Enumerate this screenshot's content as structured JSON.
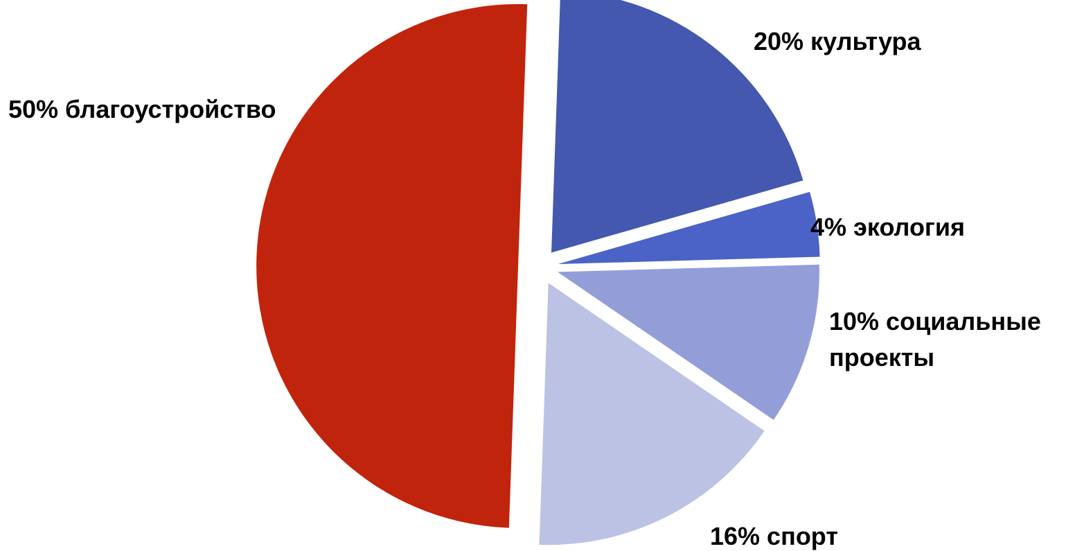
{
  "chart_data": {
    "type": "pie",
    "title": "",
    "exploded": true,
    "slices": [
      {
        "name": "культура",
        "value": 20,
        "label_lines": [
          "20% культура"
        ],
        "color": "#4358AE"
      },
      {
        "name": "экология",
        "value": 4,
        "label_lines": [
          "4% экология"
        ],
        "color": "#4B63C6"
      },
      {
        "name": "социальные проекты",
        "value": 10,
        "label_lines": [
          "10% социальные",
          "проекты"
        ],
        "color": "#939ED9"
      },
      {
        "name": "спорт",
        "value": 16,
        "label_lines": [
          "16% спорт"
        ],
        "color": "#BCC2E3"
      },
      {
        "name": "благоустройство",
        "value": 50,
        "label_lines": [
          "50% благоустройство"
        ],
        "color": "#C1240C"
      }
    ]
  }
}
